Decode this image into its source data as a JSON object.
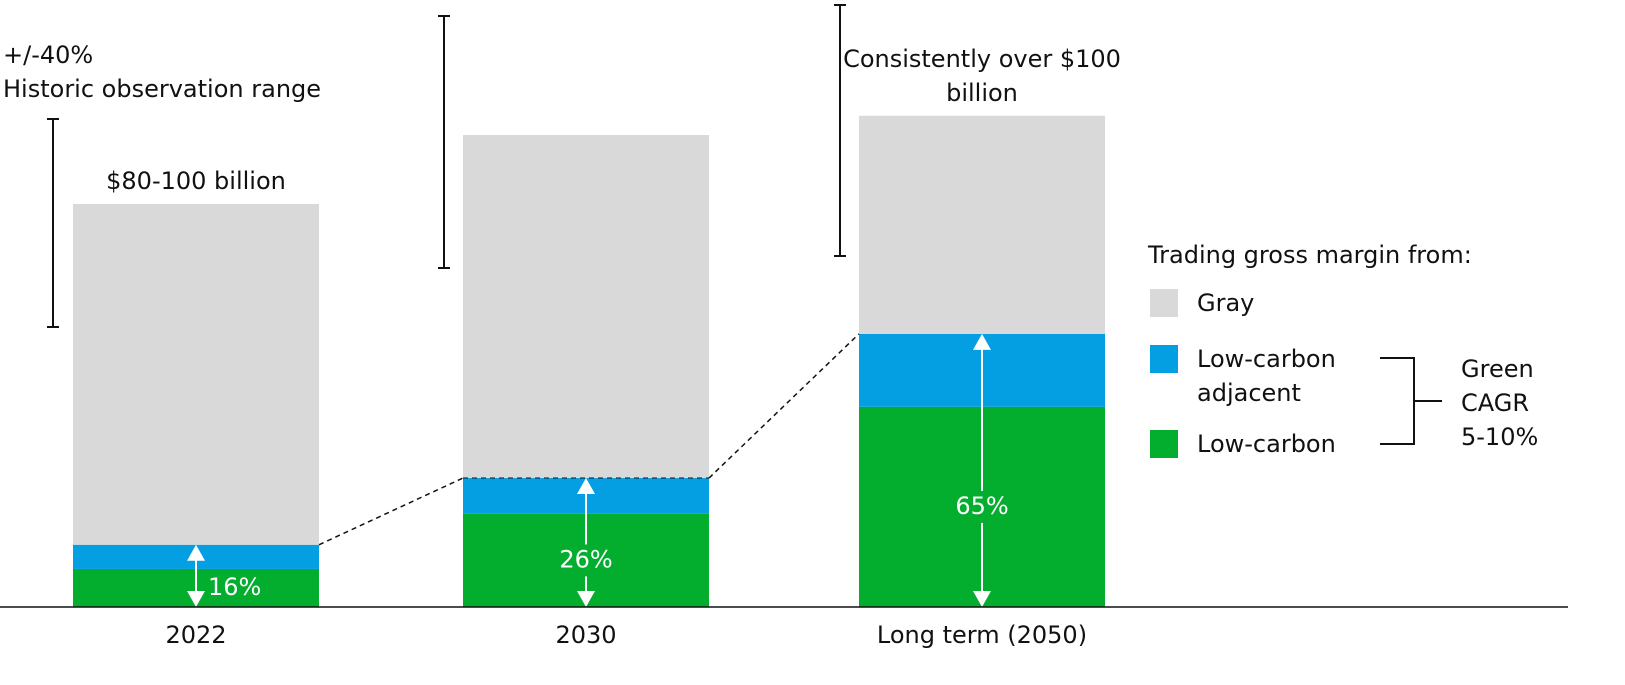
{
  "chart_data": {
    "type": "stacked-bar",
    "categories": [
      "2022",
      "2030",
      "Long term (2050)"
    ],
    "series": [
      {
        "name": "Low-carbon",
        "color": "#03ad2e",
        "values": [
          8.5,
          20.8,
          44.7
        ]
      },
      {
        "name": "Low-carbon adjacent",
        "color": "#049fe3",
        "values": [
          5.4,
          8.0,
          16.3
        ]
      },
      {
        "name": "Gray",
        "color": "#d9d9d9",
        "values": [
          76.1,
          76.6,
          48.7
        ]
      }
    ],
    "share_labels": [
      "16%",
      "26%",
      "65%"
    ],
    "total_labels": [
      "$80-100 billion",
      null,
      "Consistently over $100 billion"
    ],
    "range_label": "+/-40%",
    "range_caption": "Historic observation range",
    "legend_title": "Trading gross margin from:",
    "bracket_label": "Green CAGR 5-10%"
  }
}
